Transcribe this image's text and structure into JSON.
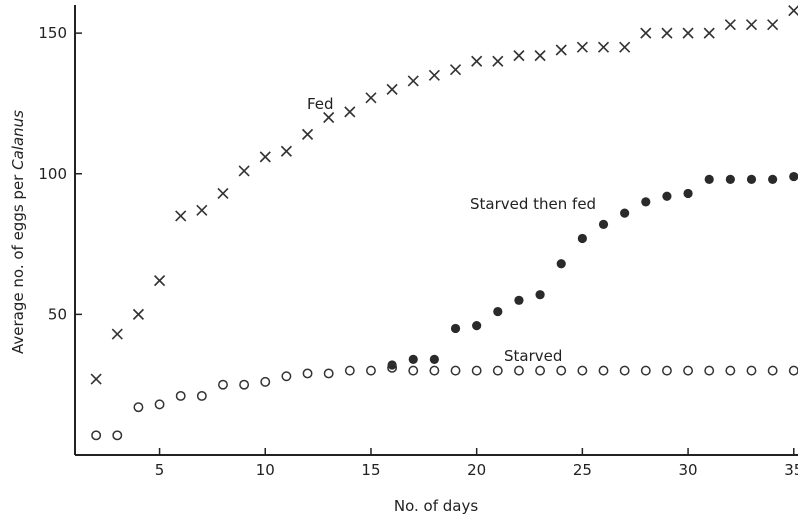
{
  "chart_data": {
    "type": "scatter",
    "title": "",
    "xlabel": "No. of days",
    "ylabel": "Average no. of eggs per Calanus",
    "ylabel_parts": [
      "Average no. of eggs per ",
      "Calanus"
    ],
    "xlim": [
      1,
      35.2
    ],
    "ylim": [
      0,
      160
    ],
    "xticks": [
      5,
      10,
      15,
      20,
      25,
      30,
      35
    ],
    "yticks": [
      50,
      100,
      150
    ],
    "grid": false,
    "legend": "none",
    "series": [
      {
        "name": "Fed",
        "marker": "x",
        "x": [
          2,
          3,
          4,
          5,
          6,
          7,
          8,
          9,
          10,
          11,
          12,
          13,
          14,
          15,
          16,
          17,
          18,
          19,
          20,
          21,
          22,
          23,
          24,
          25,
          26,
          27,
          28,
          29,
          30,
          31,
          32,
          33,
          34,
          35
        ],
        "y": [
          27,
          43,
          50,
          62,
          85,
          87,
          93,
          101,
          106,
          108,
          114,
          120,
          122,
          127,
          130,
          133,
          135,
          137,
          140,
          140,
          142,
          142,
          144,
          145,
          145,
          145,
          150,
          150,
          150,
          150,
          153,
          153,
          153,
          158
        ]
      },
      {
        "name": "Starved then fed",
        "marker": "filled-circle",
        "x": [
          16,
          17,
          18,
          19,
          20,
          21,
          22,
          23,
          24,
          25,
          26,
          27,
          28,
          29,
          30,
          31,
          32,
          33,
          34,
          35
        ],
        "y": [
          32,
          34,
          34,
          45,
          46,
          51,
          55,
          57,
          68,
          77,
          82,
          86,
          90,
          92,
          93,
          98,
          98,
          98,
          98,
          99
        ]
      },
      {
        "name": "Starved",
        "marker": "open-circle",
        "x": [
          2,
          3,
          4,
          5,
          6,
          7,
          8,
          9,
          10,
          11,
          12,
          13,
          14,
          15,
          16,
          17,
          18,
          19,
          20,
          21,
          22,
          23,
          24,
          25,
          26,
          27,
          28,
          29,
          30,
          31,
          32,
          33,
          34,
          35
        ],
        "y": [
          7,
          7,
          17,
          18,
          21,
          21,
          25,
          25,
          26,
          28,
          29,
          29,
          30,
          30,
          31,
          30,
          30,
          30,
          30,
          30,
          30,
          30,
          30,
          30,
          30,
          30,
          30,
          30,
          30,
          30,
          30,
          30,
          30,
          30
        ]
      }
    ]
  }
}
